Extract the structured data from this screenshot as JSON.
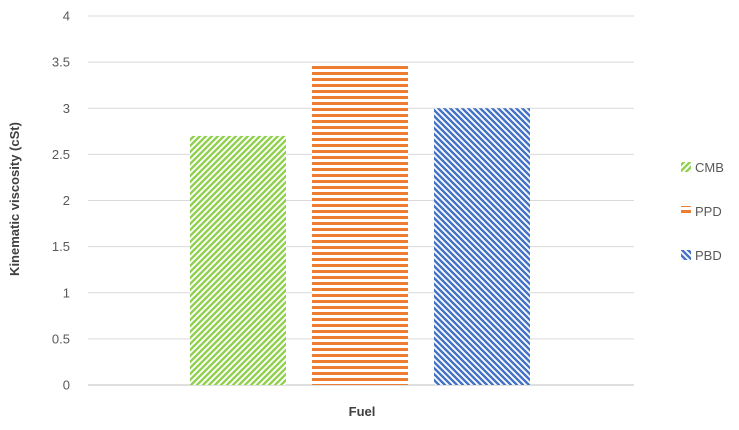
{
  "chart_data": {
    "type": "bar",
    "categories": [
      "Fuel"
    ],
    "series": [
      {
        "name": "CMB",
        "values": [
          2.7
        ],
        "color": "#92d050",
        "pattern": "diagonal-up"
      },
      {
        "name": "PPD",
        "values": [
          3.48
        ],
        "color": "#ed7d31",
        "pattern": "horizontal"
      },
      {
        "name": "PBD",
        "values": [
          3.0
        ],
        "color": "#4472c4",
        "pattern": "diagonal-down"
      }
    ],
    "title": "",
    "xlabel": "Fuel",
    "ylabel": "Kinematic viscosity (cSt)",
    "ylim": [
      0,
      4
    ],
    "yticks": [
      "0",
      "0.5",
      "1",
      "1.5",
      "2",
      "2.5",
      "3",
      "3.5",
      "4"
    ],
    "grid": true,
    "legend_position": "right",
    "colors": {
      "grid": "#d9d9d9",
      "text": "#595959",
      "label": "#404040"
    }
  }
}
